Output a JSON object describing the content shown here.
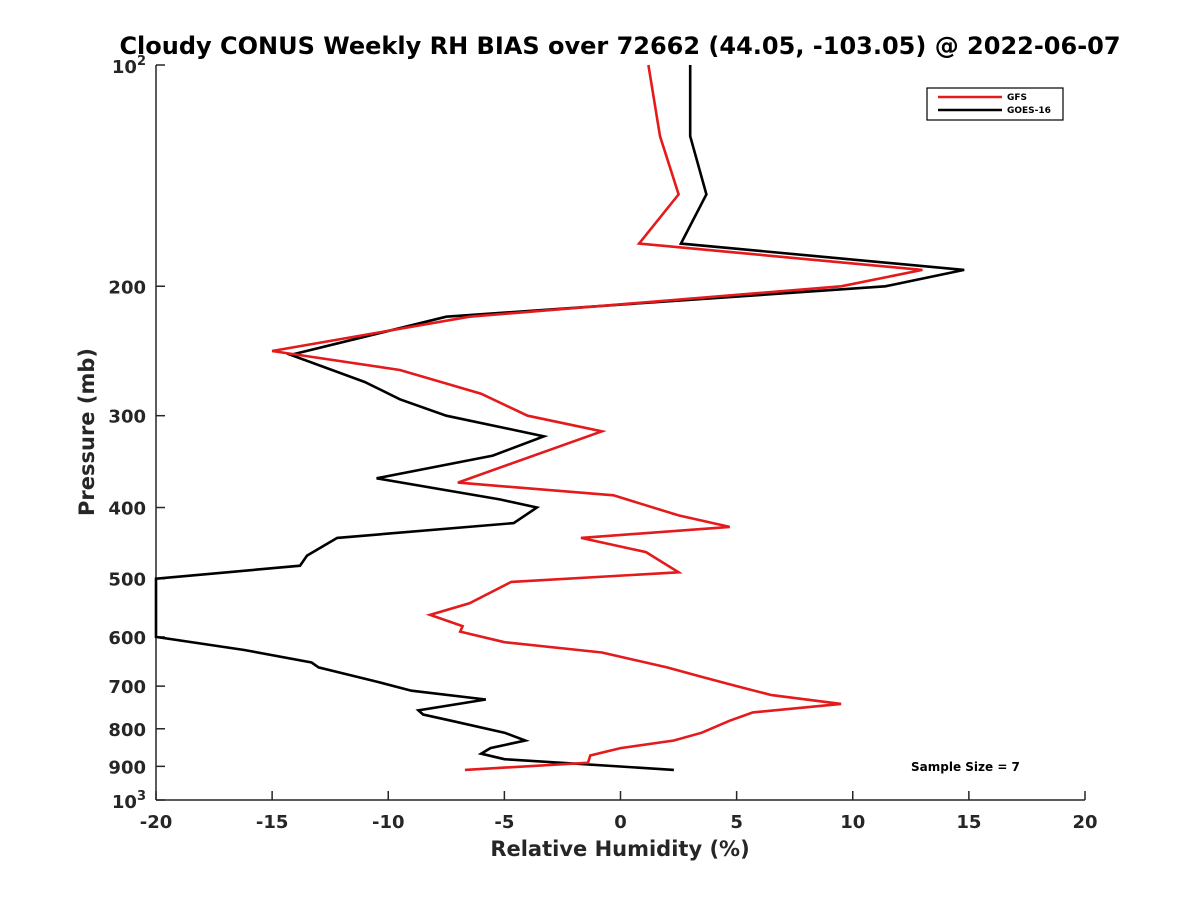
{
  "chart_data": {
    "type": "line",
    "title": "Cloudy CONUS Weekly RH BIAS over 72662 (44.05, -103.05) @ 2022-06-07",
    "xlabel": "Relative Humidity (%)",
    "ylabel": "Pressure (mb)",
    "xlim": [
      -20,
      20
    ],
    "ylim": [
      100,
      1000
    ],
    "y_scale": "log",
    "y_reversed": true,
    "grid": false,
    "legend_position": "top-right",
    "x_ticks": [
      "-20",
      "-15",
      "-10",
      "-5",
      "0",
      "5",
      "10",
      "15",
      "20"
    ],
    "y_ticks": [
      {
        "value": 100,
        "base": "10",
        "exp": "2"
      },
      {
        "value": 200,
        "label": "200"
      },
      {
        "value": 300,
        "label": "300"
      },
      {
        "value": 400,
        "label": "400"
      },
      {
        "value": 500,
        "label": "500"
      },
      {
        "value": 600,
        "label": "600"
      },
      {
        "value": 700,
        "label": "700"
      },
      {
        "value": 800,
        "label": "800"
      },
      {
        "value": 900,
        "label": "900"
      },
      {
        "value": 1000,
        "base": "10",
        "exp": "3"
      }
    ],
    "series": [
      {
        "name": "GFS",
        "color": "#e41a1c",
        "points": [
          [
            1.2,
            100
          ],
          [
            1.7,
            125
          ],
          [
            2.5,
            150
          ],
          [
            0.8,
            175
          ],
          [
            13.0,
            190
          ],
          [
            9.5,
            200
          ],
          [
            -6.5,
            220
          ],
          [
            -15.0,
            245
          ],
          [
            -9.5,
            260
          ],
          [
            -6.0,
            280
          ],
          [
            -4.0,
            300
          ],
          [
            -0.8,
            315
          ],
          [
            -7.0,
            370
          ],
          [
            -0.3,
            385
          ],
          [
            2.5,
            410
          ],
          [
            4.7,
            425
          ],
          [
            -1.7,
            440
          ],
          [
            1.1,
            460
          ],
          [
            2.5,
            490
          ],
          [
            -4.7,
            505
          ],
          [
            -6.5,
            540
          ],
          [
            -8.2,
            560
          ],
          [
            -6.8,
            580
          ],
          [
            -6.9,
            590
          ],
          [
            -5.0,
            610
          ],
          [
            -0.8,
            630
          ],
          [
            2.0,
            660
          ],
          [
            3.5,
            680
          ],
          [
            5.0,
            700
          ],
          [
            6.5,
            720
          ],
          [
            9.5,
            740
          ],
          [
            5.7,
            760
          ],
          [
            4.7,
            780
          ],
          [
            3.5,
            810
          ],
          [
            2.3,
            830
          ],
          [
            0.0,
            850
          ],
          [
            -1.3,
            870
          ],
          [
            -1.4,
            890
          ],
          [
            -6.7,
            910
          ]
        ]
      },
      {
        "name": "GOES-16",
        "color": "#000000",
        "points": [
          [
            3.0,
            100
          ],
          [
            3.0,
            125
          ],
          [
            3.7,
            150
          ],
          [
            2.6,
            175
          ],
          [
            14.8,
            190
          ],
          [
            11.4,
            200
          ],
          [
            -7.5,
            220
          ],
          [
            -14.2,
            248
          ],
          [
            -11.0,
            270
          ],
          [
            -9.5,
            285
          ],
          [
            -7.5,
            300
          ],
          [
            -3.3,
            320
          ],
          [
            -5.5,
            340
          ],
          [
            -10.5,
            365
          ],
          [
            -5.2,
            390
          ],
          [
            -3.6,
            400
          ],
          [
            -4.6,
            420
          ],
          [
            -12.2,
            440
          ],
          [
            -13.5,
            465
          ],
          [
            -13.8,
            480
          ],
          [
            -20.0,
            500
          ],
          [
            -20.0,
            600
          ],
          [
            -16.2,
            625
          ],
          [
            -13.3,
            650
          ],
          [
            -13.0,
            660
          ],
          [
            -10.5,
            690
          ],
          [
            -9.0,
            710
          ],
          [
            -5.8,
            730
          ],
          [
            -8.7,
            755
          ],
          [
            -8.5,
            765
          ],
          [
            -7.3,
            780
          ],
          [
            -5.0,
            810
          ],
          [
            -4.1,
            830
          ],
          [
            -5.6,
            850
          ],
          [
            -6.0,
            865
          ],
          [
            -5.0,
            880
          ],
          [
            2.3,
            910
          ]
        ]
      }
    ],
    "annotation": "Sample Size = 7"
  }
}
